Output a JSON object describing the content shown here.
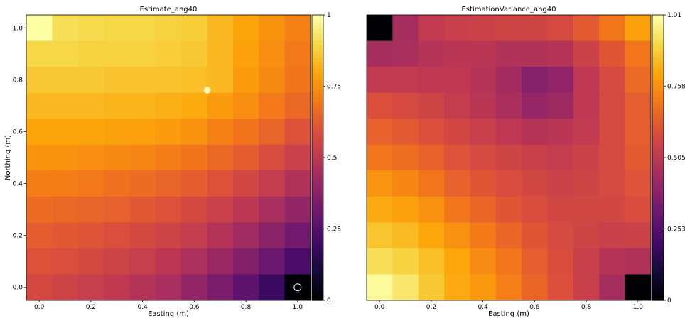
{
  "chart_data": [
    {
      "type": "heatmap",
      "title": "Estimate_ang40",
      "xlabel": "Easting (m)",
      "ylabel": "Northing (m)",
      "x": [
        0.0,
        0.1,
        0.2,
        0.3,
        0.4,
        0.5,
        0.6,
        0.7,
        0.8,
        0.9,
        1.0
      ],
      "y": [
        1.0,
        0.9,
        0.8,
        0.7,
        0.6,
        0.5,
        0.4,
        0.3,
        0.2,
        0.1,
        0.0
      ],
      "xlim": [
        -0.05,
        1.05
      ],
      "ylim": [
        -0.05,
        1.05
      ],
      "xticks": [
        "0.0",
        "0.2",
        "0.4",
        "0.6",
        "0.8",
        "1.0"
      ],
      "yticks": [
        "0.0",
        "0.2",
        "0.4",
        "0.6",
        "0.8",
        "1.0"
      ],
      "colormap": "inferno",
      "clim": [
        0,
        1
      ],
      "colorbar_ticks": [
        "0",
        "0.25",
        "0.5",
        "0.75",
        "1"
      ],
      "values": [
        [
          1.0,
          0.92,
          0.91,
          0.9,
          0.9,
          0.89,
          0.88,
          0.84,
          0.8,
          0.76,
          0.72
        ],
        [
          0.9,
          0.9,
          0.89,
          0.89,
          0.89,
          0.88,
          0.87,
          0.84,
          0.79,
          0.75,
          0.7
        ],
        [
          0.87,
          0.87,
          0.87,
          0.86,
          0.86,
          0.86,
          0.85,
          0.84,
          0.78,
          0.74,
          0.69
        ],
        [
          0.84,
          0.84,
          0.84,
          0.83,
          0.83,
          0.82,
          0.81,
          0.78,
          0.75,
          0.7,
          0.66
        ],
        [
          0.8,
          0.8,
          0.8,
          0.79,
          0.79,
          0.78,
          0.76,
          0.72,
          0.69,
          0.65,
          0.6
        ],
        [
          0.76,
          0.76,
          0.75,
          0.74,
          0.73,
          0.71,
          0.69,
          0.66,
          0.63,
          0.58,
          0.54
        ],
        [
          0.71,
          0.71,
          0.7,
          0.68,
          0.67,
          0.65,
          0.63,
          0.6,
          0.56,
          0.52,
          0.47
        ],
        [
          0.67,
          0.66,
          0.65,
          0.64,
          0.62,
          0.6,
          0.57,
          0.54,
          0.5,
          0.45,
          0.4
        ],
        [
          0.63,
          0.62,
          0.61,
          0.59,
          0.57,
          0.55,
          0.52,
          0.48,
          0.43,
          0.38,
          0.32
        ],
        [
          0.6,
          0.59,
          0.57,
          0.55,
          0.53,
          0.5,
          0.46,
          0.42,
          0.36,
          0.3,
          0.22
        ],
        [
          0.57,
          0.55,
          0.53,
          0.51,
          0.48,
          0.45,
          0.4,
          0.34,
          0.27,
          0.18,
          0.0
        ]
      ],
      "markers": [
        {
          "x": 0.65,
          "y": 0.76,
          "style": "filled",
          "color": "#fff7b0"
        },
        {
          "x": 1.0,
          "y": 0.0,
          "style": "open",
          "color": "#ffffff"
        }
      ]
    },
    {
      "type": "heatmap",
      "title": "EstimationVariance_ang40",
      "xlabel": "Easting (m)",
      "ylabel": "",
      "x": [
        0.0,
        0.1,
        0.2,
        0.3,
        0.4,
        0.5,
        0.6,
        0.7,
        0.8,
        0.9,
        1.0
      ],
      "y": [
        1.0,
        0.9,
        0.8,
        0.7,
        0.6,
        0.5,
        0.4,
        0.3,
        0.2,
        0.1,
        0.0
      ],
      "xlim": [
        -0.05,
        1.05
      ],
      "ylim": [
        -0.05,
        1.05
      ],
      "xticks": [
        "0.0",
        "0.2",
        "0.4",
        "0.6",
        "0.8",
        "1.0"
      ],
      "colormap": "inferno",
      "clim": [
        0,
        1.01
      ],
      "colorbar_ticks": [
        "0",
        "0.253",
        "0.505",
        "0.758",
        "1.01"
      ],
      "values": [
        [
          0.0,
          0.45,
          0.52,
          0.54,
          0.55,
          0.56,
          0.56,
          0.58,
          0.63,
          0.7,
          0.8
        ],
        [
          0.45,
          0.46,
          0.49,
          0.5,
          0.5,
          0.48,
          0.48,
          0.49,
          0.55,
          0.62,
          0.7
        ],
        [
          0.52,
          0.52,
          0.51,
          0.51,
          0.49,
          0.44,
          0.37,
          0.4,
          0.51,
          0.58,
          0.67
        ],
        [
          0.6,
          0.58,
          0.56,
          0.53,
          0.5,
          0.46,
          0.41,
          0.43,
          0.51,
          0.58,
          0.64
        ],
        [
          0.65,
          0.63,
          0.6,
          0.57,
          0.54,
          0.51,
          0.49,
          0.5,
          0.52,
          0.58,
          0.64
        ],
        [
          0.7,
          0.68,
          0.65,
          0.61,
          0.58,
          0.56,
          0.54,
          0.53,
          0.55,
          0.58,
          0.63
        ],
        [
          0.77,
          0.74,
          0.7,
          0.65,
          0.62,
          0.59,
          0.57,
          0.55,
          0.56,
          0.58,
          0.61
        ],
        [
          0.82,
          0.8,
          0.76,
          0.7,
          0.66,
          0.62,
          0.59,
          0.57,
          0.57,
          0.57,
          0.59
        ],
        [
          0.87,
          0.85,
          0.81,
          0.76,
          0.71,
          0.66,
          0.62,
          0.58,
          0.56,
          0.54,
          0.55
        ],
        [
          0.93,
          0.9,
          0.86,
          0.81,
          0.75,
          0.7,
          0.64,
          0.59,
          0.54,
          0.49,
          0.48
        ],
        [
          1.0,
          0.95,
          0.88,
          0.82,
          0.78,
          0.72,
          0.66,
          0.6,
          0.54,
          0.45,
          0.0
        ]
      ]
    }
  ]
}
